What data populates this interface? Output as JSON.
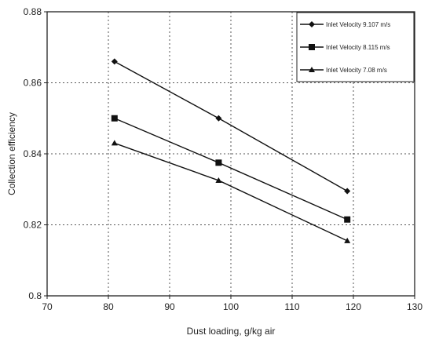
{
  "chart_data": {
    "type": "line",
    "title": "",
    "xlabel": "Dust loading, g/kg air",
    "ylabel": "Collection efficiency",
    "xlim": [
      70,
      130
    ],
    "ylim": [
      0.8,
      0.88
    ],
    "x_ticks": [
      70,
      80,
      90,
      100,
      110,
      120,
      130
    ],
    "x_tick_labels": [
      "70",
      "80",
      "90",
      "100",
      "110",
      "120",
      "130"
    ],
    "y_ticks": [
      0.8,
      0.82,
      0.84,
      0.86,
      0.88
    ],
    "y_tick_labels": [
      "0.8",
      "0.82",
      "0.84",
      "0.86",
      "0.88"
    ],
    "grid": true,
    "legend_position": "top-right",
    "series": [
      {
        "name": "Inlet Velocity 9.107 m/s",
        "marker": "diamond",
        "color": "#111111",
        "x": [
          81,
          98,
          119
        ],
        "y": [
          0.866,
          0.85,
          0.8295
        ]
      },
      {
        "name": "Inlet Velocity 8.115 m/s",
        "marker": "square",
        "color": "#111111",
        "x": [
          81,
          98,
          119
        ],
        "y": [
          0.85,
          0.8375,
          0.8215
        ]
      },
      {
        "name": "Inlet Velocity 7.08 m/s",
        "marker": "triangle",
        "color": "#111111",
        "x": [
          81,
          98,
          119
        ],
        "y": [
          0.843,
          0.8325,
          0.8155
        ]
      }
    ]
  }
}
